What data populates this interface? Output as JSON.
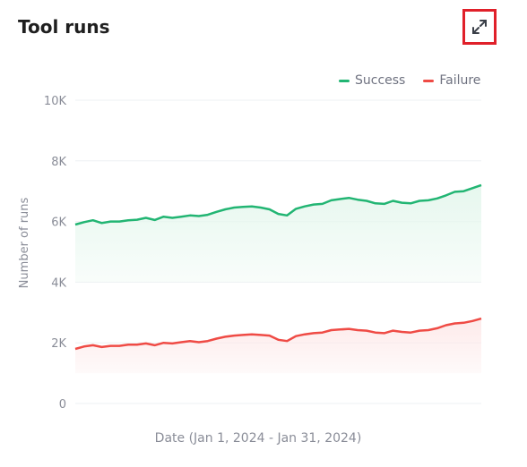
{
  "card": {
    "title": "Tool runs",
    "expand_icon": "expand-diagonal-icon",
    "highlight_color": "#e0202a"
  },
  "chart_data": {
    "type": "area",
    "xlabel": "Date (Jan 1, 2024 - Jan 31, 2024)",
    "ylabel": "Number of runs",
    "ylim": [
      0,
      10000
    ],
    "yticks": [
      0,
      2000,
      4000,
      6000,
      8000,
      10000
    ],
    "ytick_labels": [
      "0",
      "2K",
      "4K",
      "6K",
      "8K",
      "10K"
    ],
    "legend_position": "top-right",
    "grid": true,
    "x_date_range": [
      "2024-01-01",
      "2024-01-31"
    ],
    "series": [
      {
        "name": "Success",
        "color": "#22b573",
        "fill": "#e6f7ee",
        "values": [
          5900,
          5980,
          6040,
          5950,
          6000,
          6000,
          6040,
          6060,
          6120,
          6050,
          6160,
          6120,
          6160,
          6200,
          6180,
          6220,
          6320,
          6400,
          6460,
          6480,
          6500,
          6460,
          6400,
          6250,
          6200,
          6420,
          6500,
          6560,
          6580,
          6700,
          6740,
          6780,
          6720,
          6680,
          6600,
          6580,
          6680,
          6620,
          6600,
          6680,
          6700,
          6760,
          6860,
          6980,
          7000,
          7100,
          7200
        ]
      },
      {
        "name": "Failure",
        "color": "#ef4b45",
        "fill": "#fdeaea",
        "values": [
          1800,
          1880,
          1920,
          1860,
          1900,
          1900,
          1940,
          1940,
          1980,
          1920,
          2000,
          1980,
          2020,
          2060,
          2020,
          2060,
          2140,
          2200,
          2240,
          2260,
          2280,
          2260,
          2240,
          2100,
          2060,
          2220,
          2280,
          2320,
          2340,
          2420,
          2440,
          2460,
          2420,
          2400,
          2340,
          2320,
          2400,
          2360,
          2340,
          2400,
          2420,
          2480,
          2580,
          2640,
          2660,
          2720,
          2800
        ]
      }
    ]
  }
}
